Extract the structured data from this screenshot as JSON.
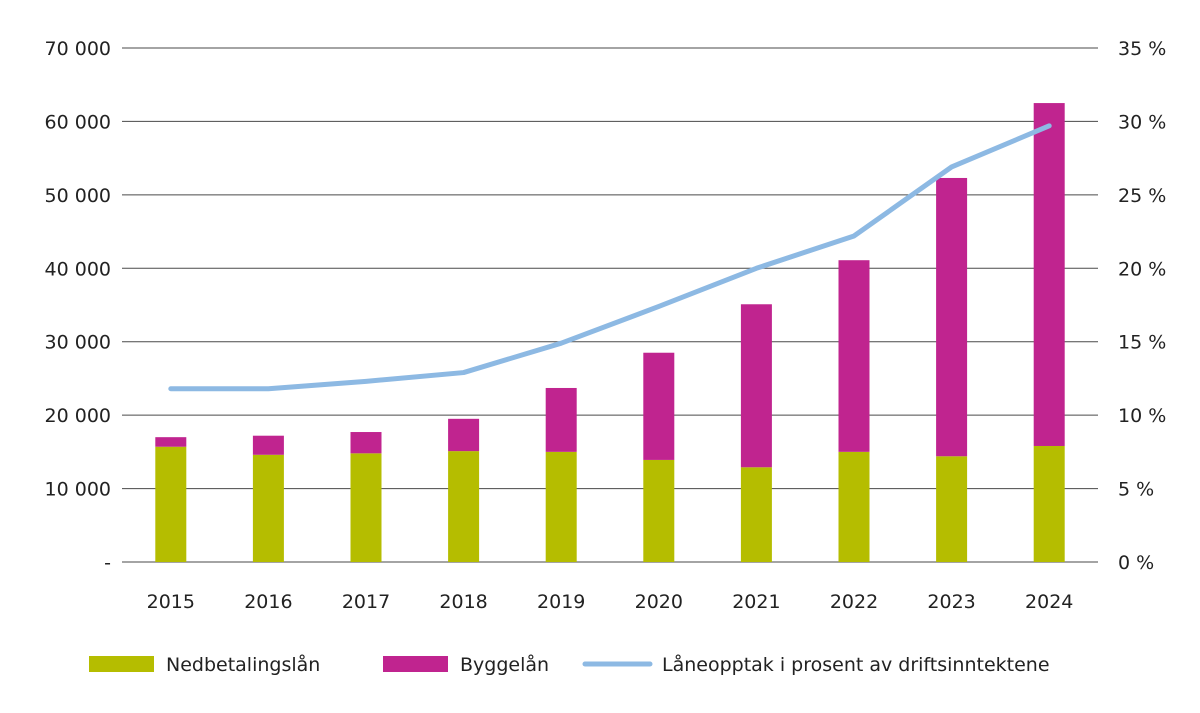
{
  "chart_data": {
    "type": "bar",
    "stacked": true,
    "categories": [
      "2015",
      "2016",
      "2017",
      "2018",
      "2019",
      "2020",
      "2021",
      "2022",
      "2023",
      "2024"
    ],
    "series": [
      {
        "name": "Nedbetalingslån",
        "kind": "bar",
        "axis": "left",
        "color": "#b5bd00",
        "values": [
          15700,
          14600,
          14800,
          15100,
          15000,
          13900,
          12900,
          15000,
          14400,
          15800
        ]
      },
      {
        "name": "Byggelån",
        "kind": "bar",
        "axis": "left",
        "color": "#c0248f",
        "values": [
          1300,
          2600,
          2900,
          4400,
          8700,
          14600,
          22200,
          26100,
          37900,
          46700
        ]
      },
      {
        "name": "Låneopptak i prosent av driftsinntektene",
        "kind": "line",
        "axis": "right",
        "color": "#8db9e3",
        "values": [
          11.8,
          11.8,
          12.3,
          12.9,
          14.9,
          17.4,
          20.0,
          22.2,
          26.9,
          29.7
        ]
      }
    ],
    "ylim": [
      0,
      70000
    ],
    "y2lim": [
      0,
      35
    ],
    "y_ticks": [
      "-",
      "10 000",
      "20 000",
      "30 000",
      "40 000",
      "50 000",
      "60 000",
      "70 000"
    ],
    "y2_ticks": [
      "0 %",
      "5 %",
      "10 %",
      "15 %",
      "20 %",
      "25 %",
      "30 %",
      "35 %"
    ],
    "grid": true,
    "legend_position": "bottom"
  }
}
